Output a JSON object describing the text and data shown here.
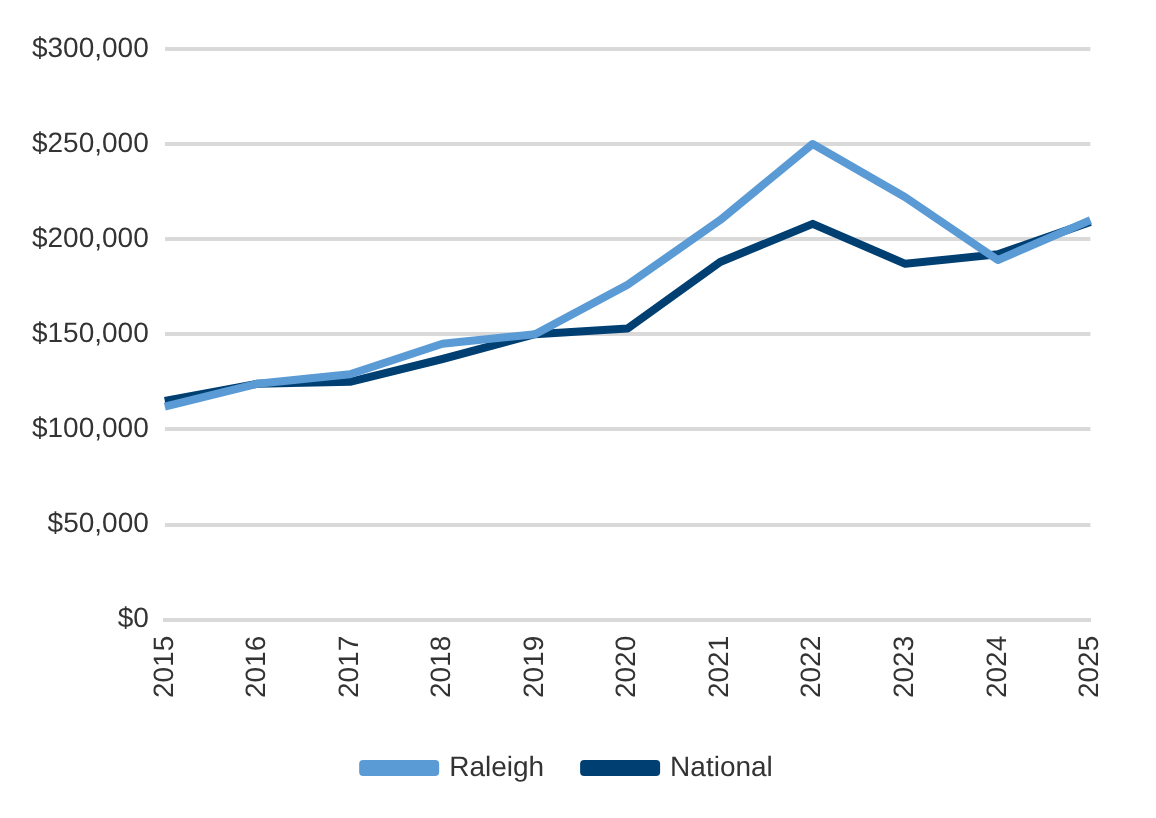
{
  "chart_data": {
    "type": "line",
    "categories": [
      "2015",
      "2016",
      "2017",
      "2018",
      "2019",
      "2020",
      "2021",
      "2022",
      "2023",
      "2024",
      "2025"
    ],
    "series": [
      {
        "name": "Raleigh",
        "color": "#5b9bd5",
        "values": [
          112000,
          124000,
          129000,
          145000,
          150000,
          176000,
          210000,
          250000,
          222000,
          189000,
          210000
        ]
      },
      {
        "name": "National",
        "color": "#003f72",
        "values": [
          115000,
          124000,
          125000,
          137000,
          150000,
          153000,
          188000,
          208000,
          187000,
          192000,
          209000
        ]
      }
    ],
    "ylim": [
      0,
      300000
    ],
    "yticks": [
      {
        "value": 0,
        "label": "$0"
      },
      {
        "value": 50000,
        "label": "$50,000"
      },
      {
        "value": 100000,
        "label": "$100,000"
      },
      {
        "value": 150000,
        "label": "$150,000"
      },
      {
        "value": 200000,
        "label": "$200,000"
      },
      {
        "value": 250000,
        "label": "$250,000"
      },
      {
        "value": 300000,
        "label": "$300,000"
      }
    ],
    "grid": "y",
    "legend": "bottom",
    "marker": "none",
    "line_style": "solid"
  }
}
